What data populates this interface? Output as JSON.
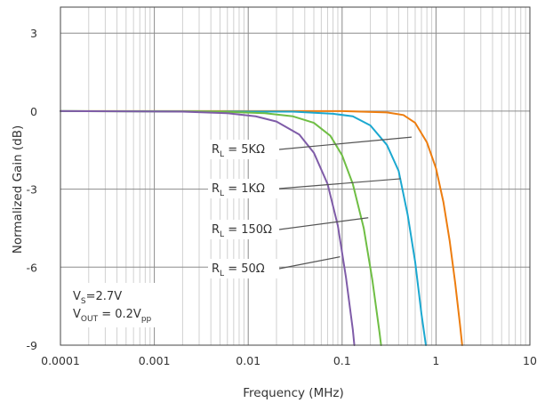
{
  "chart_data": {
    "type": "line",
    "title": "",
    "xlabel": "Frequency (MHz)",
    "ylabel": "Normalized Gain (dB)",
    "xscale": "log",
    "xlim": [
      0.0001,
      10
    ],
    "ylim": [
      -9,
      4
    ],
    "xticks": [
      0.0001,
      0.001,
      0.01,
      0.1,
      1,
      10
    ],
    "xtick_labels": [
      "0.0001",
      "0.001",
      "0.01",
      "0.1",
      "1",
      "10"
    ],
    "yticks": [
      3,
      0,
      -3,
      -6,
      -9
    ],
    "ytick_labels": [
      "3",
      "0",
      "-3",
      "-6",
      "-9"
    ],
    "grid": true,
    "legend": "none",
    "series": [
      {
        "color": "#ED7D0F",
        "label": {
          "main": "R",
          "sub": "L",
          "rest": " = 5KΩ"
        },
        "points": [
          [
            0.0001,
            0
          ],
          [
            0.1,
            0
          ],
          [
            0.3,
            -0.05
          ],
          [
            0.45,
            -0.15
          ],
          [
            0.6,
            -0.45
          ],
          [
            0.8,
            -1.2
          ],
          [
            1.0,
            -2.2
          ],
          [
            1.2,
            -3.5
          ],
          [
            1.4,
            -5.0
          ],
          [
            1.6,
            -6.6
          ],
          [
            1.8,
            -8.2
          ],
          [
            1.9,
            -9
          ]
        ]
      },
      {
        "color": "#1BA8D0",
        "label": {
          "main": "R",
          "sub": "L",
          "rest": " = 1KΩ"
        },
        "points": [
          [
            0.0001,
            0
          ],
          [
            0.03,
            -0.02
          ],
          [
            0.08,
            -0.1
          ],
          [
            0.13,
            -0.2
          ],
          [
            0.2,
            -0.55
          ],
          [
            0.3,
            -1.3
          ],
          [
            0.4,
            -2.3
          ],
          [
            0.5,
            -4.0
          ],
          [
            0.6,
            -5.8
          ],
          [
            0.7,
            -7.8
          ],
          [
            0.78,
            -9
          ]
        ]
      },
      {
        "color": "#6FBE44",
        "label": {
          "main": "R",
          "sub": "L",
          "rest": " = 150Ω"
        },
        "points": [
          [
            0.0001,
            0
          ],
          [
            0.005,
            -0.02
          ],
          [
            0.015,
            -0.08
          ],
          [
            0.03,
            -0.2
          ],
          [
            0.05,
            -0.45
          ],
          [
            0.075,
            -0.95
          ],
          [
            0.1,
            -1.7
          ],
          [
            0.13,
            -2.8
          ],
          [
            0.17,
            -4.5
          ],
          [
            0.21,
            -6.5
          ],
          [
            0.25,
            -8.5
          ],
          [
            0.26,
            -9
          ]
        ]
      },
      {
        "color": "#7F5CA8",
        "label": {
          "main": "R",
          "sub": "L",
          "rest": " = 50Ω"
        },
        "points": [
          [
            0.0001,
            0
          ],
          [
            0.002,
            -0.02
          ],
          [
            0.006,
            -0.08
          ],
          [
            0.012,
            -0.2
          ],
          [
            0.02,
            -0.4
          ],
          [
            0.035,
            -0.9
          ],
          [
            0.05,
            -1.6
          ],
          [
            0.07,
            -2.8
          ],
          [
            0.09,
            -4.4
          ],
          [
            0.11,
            -6.4
          ],
          [
            0.13,
            -8.4
          ],
          [
            0.135,
            -9
          ]
        ]
      }
    ],
    "annotations": [
      {
        "series": 0,
        "target": [
          0.55,
          -1.0
        ]
      },
      {
        "series": 1,
        "target": [
          0.42,
          -2.6
        ]
      },
      {
        "series": 2,
        "target": [
          0.19,
          -4.1
        ]
      },
      {
        "series": 3,
        "target": [
          0.095,
          -5.6
        ]
      }
    ],
    "conditions": [
      {
        "main": "V",
        "sub": "S",
        "rest": "=2.7V"
      },
      {
        "main": "V",
        "sub": "OUT",
        "rest": " = 0.2V",
        "sub2": "pp"
      }
    ]
  }
}
